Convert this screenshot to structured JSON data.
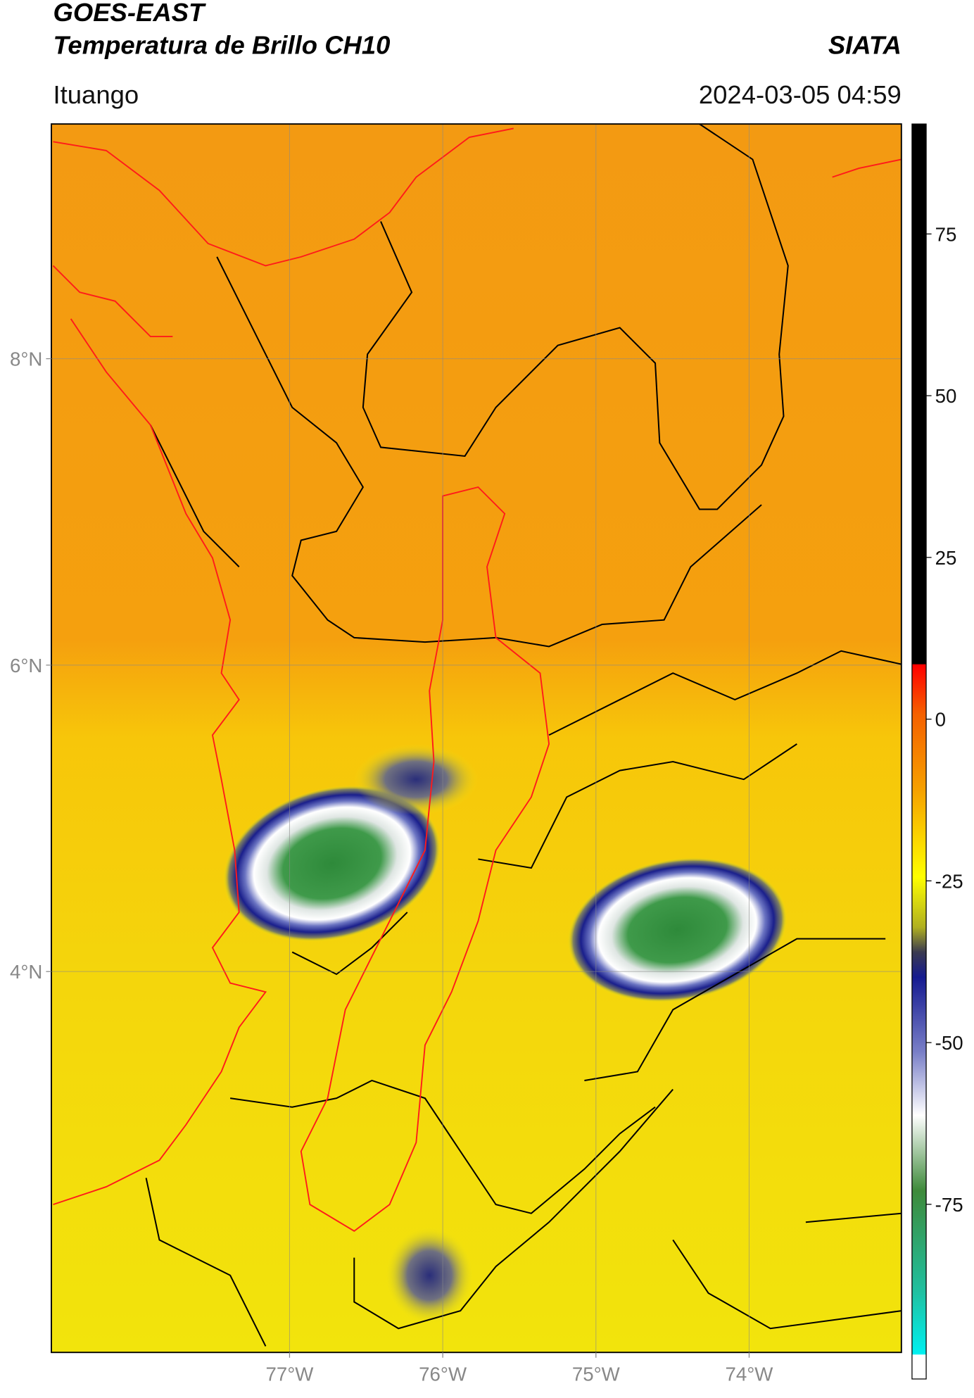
{
  "header": {
    "title": "GOES-EAST",
    "subtitle": "Temperatura de Brillo CH10",
    "source": "SIATA",
    "location": "Ituango",
    "timestamp": "2024-03-05 04:59"
  },
  "map": {
    "xlim": [
      -78.555,
      -73.006
    ],
    "ylim": [
      1.514,
      9.532
    ],
    "xticks": [
      {
        "value": -77,
        "label": "77°W"
      },
      {
        "value": -76,
        "label": "76°W"
      },
      {
        "value": -75,
        "label": "75°W"
      },
      {
        "value": -74,
        "label": "74°W"
      }
    ],
    "yticks": [
      {
        "value": 8,
        "label": "8°N"
      },
      {
        "value": 6,
        "label": "6°N"
      },
      {
        "value": 4,
        "label": "4°N"
      }
    ],
    "grid": true,
    "colorbar": {
      "ylim": [
        -102,
        92
      ],
      "yticks": [
        75,
        50,
        25,
        0,
        -25,
        -50,
        -75
      ]
    }
  }
}
